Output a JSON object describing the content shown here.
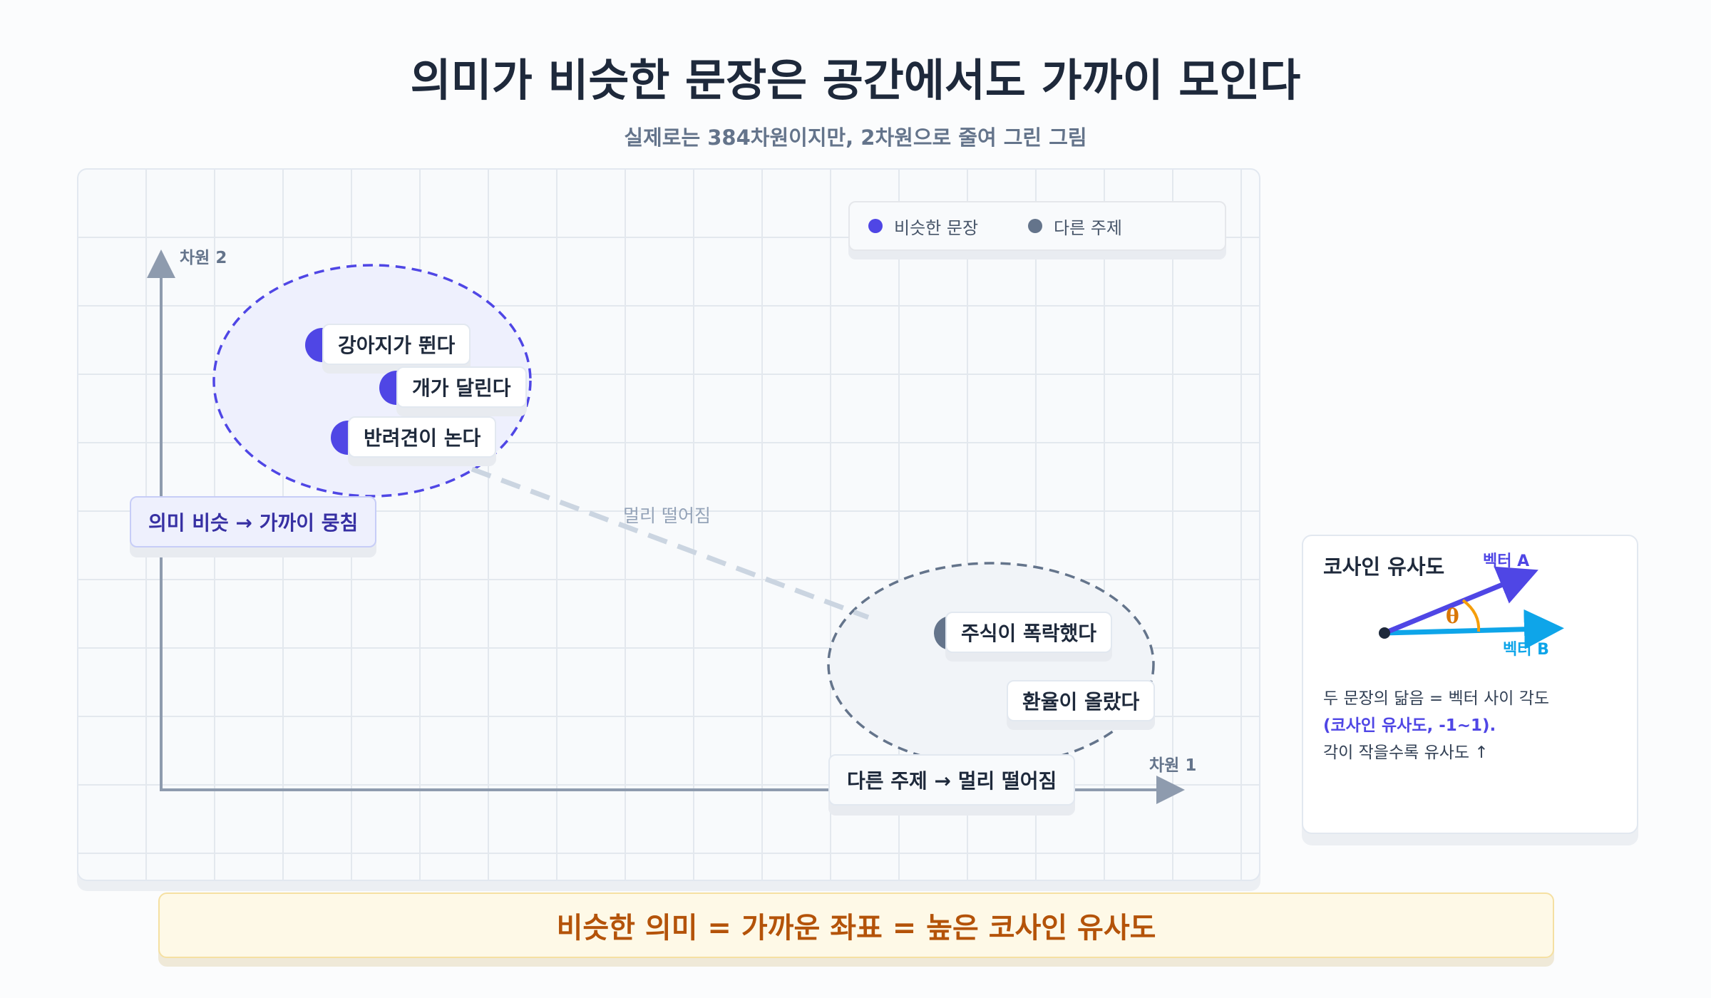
{
  "title": "의미가 비슷한 문장은 공간에서도 가까이 모인다",
  "subtitle": "실제로는 384차원이지만, 2차원으로 줄여 그린 그림",
  "legend": {
    "similar": {
      "label": "비슷한 문장",
      "color": "#4f46e5"
    },
    "other": {
      "label": "다른 주제",
      "color": "#64748b"
    }
  },
  "axes": {
    "x_label": "차원 1",
    "y_label": "차원 2"
  },
  "clusters": {
    "similar": {
      "sentences": [
        "강아지가 뛴다",
        "개가 달린다",
        "반려견이 논다"
      ],
      "callout": "의미 비슷 → 가까이 뭉침",
      "color": "#4f46e5"
    },
    "other": {
      "sentences": [
        "주식이 폭락했다",
        "환율이 올랐다"
      ],
      "callout": "다른 주제 → 멀리 떨어짐",
      "color": "#64748b"
    }
  },
  "distance_label": "멀리 떨어짐",
  "cosine": {
    "title": "코사인 유사도",
    "vector_a": "벡터 A",
    "vector_b": "벡터 B",
    "theta": "θ",
    "line1": "두 문장의 닮음 = 벡터 사이 각도",
    "line2": "(코사인 유사도, -1~1).",
    "line3": "각이 작을수록 유사도 ↑",
    "color_a": "#4f46e5",
    "color_b": "#0ea5e9",
    "color_angle": "#f59e0b"
  },
  "banner": "비슷한 의미 = 가까운 좌표 = 높은 코사인 유사도"
}
